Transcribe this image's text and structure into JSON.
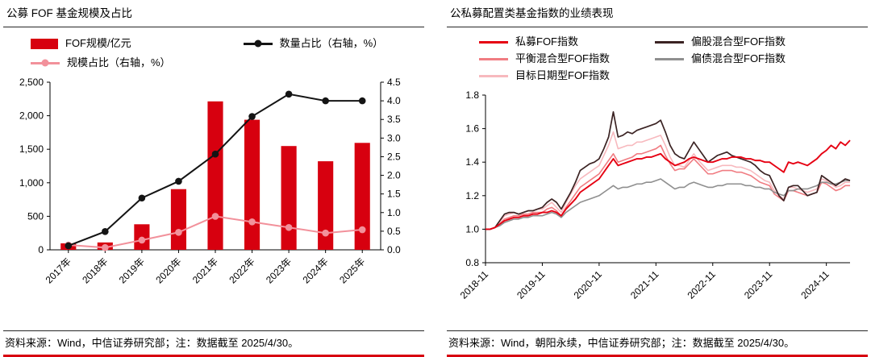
{
  "page": {
    "accent_red": "#D7000F",
    "axis_color": "#000000"
  },
  "left_panel": {
    "title": "公募 FOF 基金规模及占比",
    "source_note": "资料来源：Wind，中信证券研究部；注：数据截至 2025/4/30。"
  },
  "right_panel": {
    "title": "公私募配置类基金指数的业绩表现",
    "source_note": "资料来源：Wind，朝阳永续，中信证券研究部；注：数据截至 2025/4/30。"
  },
  "chart_data": [
    {
      "id": "fof-scale",
      "type": "bar",
      "title": "公募 FOF 基金规模及占比",
      "categories": [
        "2017年",
        "2018年",
        "2019年",
        "2020年",
        "2021年",
        "2022年",
        "2023年",
        "2024年",
        "2025年"
      ],
      "series": [
        {
          "name": "FOF规模/亿元",
          "kind": "bar",
          "axis": "left",
          "color": "#D7000F",
          "swatch": "bar",
          "values": [
            97,
            110,
            381,
            905,
            2214,
            1940,
            1548,
            1321,
            1595
          ]
        },
        {
          "name": "数量占比（右轴，%）",
          "kind": "line",
          "axis": "right",
          "color": "#141414",
          "swatch": "line-dot",
          "values": [
            0.11,
            0.49,
            1.39,
            1.84,
            2.57,
            3.58,
            4.18,
            4.0,
            4.0
          ]
        },
        {
          "name": "规模占比（右轴，%）",
          "kind": "line",
          "axis": "right",
          "color": "#F2919B",
          "swatch": "line-dot",
          "values": [
            0.13,
            0.06,
            0.26,
            0.47,
            0.9,
            0.75,
            0.6,
            0.45,
            0.54
          ]
        }
      ],
      "left_axis": {
        "min": 0,
        "max": 2500,
        "step": 500,
        "tick_labels": [
          "0",
          "500",
          "1,000",
          "1,500",
          "2,000",
          "2,500"
        ]
      },
      "right_axis": {
        "min": 0,
        "max": 4.5,
        "step": 0.5,
        "tick_labels": [
          "0.0",
          "0.5",
          "1.0",
          "1.5",
          "2.0",
          "2.5",
          "3.0",
          "3.5",
          "4.0",
          "4.5"
        ]
      },
      "grid": false,
      "legend_position": "top"
    },
    {
      "id": "index-performance",
      "type": "line",
      "title": "公私募配置类基金指数的业绩表现",
      "x_tick_labels": [
        "2018-11",
        "2019-11",
        "2020-11",
        "2021-11",
        "2022-11",
        "2023-11",
        "2024-11"
      ],
      "x_tick_indices": [
        0,
        12,
        24,
        36,
        48,
        60,
        72
      ],
      "n_points": 78,
      "y_axis": {
        "min": 0.8,
        "max": 1.8,
        "step": 0.2,
        "tick_labels": [
          "0.8",
          "1.0",
          "1.2",
          "1.4",
          "1.6",
          "1.8"
        ]
      },
      "grid": false,
      "legend_position": "top",
      "draw_order": [
        4,
        2,
        3,
        1,
        0
      ],
      "series": [
        {
          "name": "私募FOF指数",
          "color": "#E60012",
          "width": 1.9,
          "values": [
            1.0,
            1.0,
            1.01,
            1.03,
            1.05,
            1.06,
            1.07,
            1.07,
            1.08,
            1.08,
            1.09,
            1.09,
            1.1,
            1.1,
            1.11,
            1.1,
            1.08,
            1.12,
            1.15,
            1.18,
            1.22,
            1.24,
            1.26,
            1.28,
            1.3,
            1.34,
            1.38,
            1.42,
            1.38,
            1.39,
            1.4,
            1.41,
            1.42,
            1.42,
            1.43,
            1.43,
            1.44,
            1.45,
            1.42,
            1.4,
            1.38,
            1.39,
            1.4,
            1.42,
            1.43,
            1.42,
            1.41,
            1.4,
            1.4,
            1.41,
            1.42,
            1.42,
            1.43,
            1.43,
            1.43,
            1.42,
            1.42,
            1.41,
            1.41,
            1.4,
            1.4,
            1.38,
            1.36,
            1.34,
            1.4,
            1.39,
            1.4,
            1.39,
            1.38,
            1.4,
            1.42,
            1.45,
            1.47,
            1.5,
            1.48,
            1.52,
            1.5,
            1.53
          ]
        },
        {
          "name": "偏股混合型FOF指数",
          "color": "#3B2323",
          "width": 1.7,
          "values": [
            1.0,
            1.0,
            1.01,
            1.05,
            1.09,
            1.1,
            1.1,
            1.09,
            1.1,
            1.11,
            1.11,
            1.12,
            1.13,
            1.16,
            1.18,
            1.16,
            1.12,
            1.17,
            1.22,
            1.28,
            1.35,
            1.37,
            1.39,
            1.4,
            1.42,
            1.48,
            1.55,
            1.7,
            1.55,
            1.56,
            1.58,
            1.57,
            1.59,
            1.6,
            1.61,
            1.62,
            1.63,
            1.65,
            1.58,
            1.5,
            1.45,
            1.43,
            1.42,
            1.47,
            1.52,
            1.48,
            1.44,
            1.4,
            1.42,
            1.44,
            1.45,
            1.46,
            1.44,
            1.43,
            1.42,
            1.41,
            1.4,
            1.38,
            1.35,
            1.33,
            1.32,
            1.26,
            1.2,
            1.17,
            1.25,
            1.26,
            1.26,
            1.23,
            1.2,
            1.21,
            1.22,
            1.32,
            1.3,
            1.28,
            1.26,
            1.28,
            1.3,
            1.29
          ]
        },
        {
          "name": "平衡混合型FOF指数",
          "color": "#F07C82",
          "width": 1.6,
          "values": [
            1.0,
            1.0,
            1.01,
            1.03,
            1.06,
            1.07,
            1.08,
            1.08,
            1.09,
            1.09,
            1.1,
            1.1,
            1.1,
            1.12,
            1.13,
            1.11,
            1.08,
            1.13,
            1.17,
            1.21,
            1.25,
            1.27,
            1.29,
            1.31,
            1.33,
            1.37,
            1.41,
            1.45,
            1.4,
            1.41,
            1.42,
            1.43,
            1.45,
            1.45,
            1.46,
            1.47,
            1.48,
            1.5,
            1.44,
            1.39,
            1.35,
            1.36,
            1.36,
            1.39,
            1.42,
            1.39,
            1.36,
            1.33,
            1.33,
            1.34,
            1.35,
            1.35,
            1.35,
            1.34,
            1.34,
            1.33,
            1.32,
            1.3,
            1.28,
            1.27,
            1.26,
            1.21,
            1.19,
            1.17,
            1.23,
            1.23,
            1.22,
            1.21,
            1.2,
            1.21,
            1.22,
            1.28,
            1.27,
            1.25,
            1.23,
            1.24,
            1.26,
            1.26
          ]
        },
        {
          "name": "偏债混合型FOF指数",
          "color": "#8F8F8F",
          "width": 1.6,
          "values": [
            1.0,
            1.0,
            1.01,
            1.02,
            1.04,
            1.05,
            1.06,
            1.06,
            1.07,
            1.07,
            1.08,
            1.08,
            1.08,
            1.09,
            1.1,
            1.09,
            1.07,
            1.1,
            1.12,
            1.14,
            1.16,
            1.17,
            1.18,
            1.19,
            1.2,
            1.22,
            1.24,
            1.26,
            1.24,
            1.25,
            1.25,
            1.26,
            1.27,
            1.27,
            1.28,
            1.28,
            1.29,
            1.3,
            1.28,
            1.26,
            1.24,
            1.25,
            1.25,
            1.27,
            1.28,
            1.27,
            1.26,
            1.25,
            1.25,
            1.26,
            1.26,
            1.27,
            1.27,
            1.27,
            1.27,
            1.26,
            1.26,
            1.25,
            1.25,
            1.24,
            1.24,
            1.22,
            1.21,
            1.2,
            1.23,
            1.23,
            1.24,
            1.24,
            1.24,
            1.25,
            1.26,
            1.28,
            1.28,
            1.27,
            1.27,
            1.28,
            1.29,
            1.29
          ]
        },
        {
          "name": "目标日期型FOF指数",
          "color": "#F7B9BE",
          "width": 1.6,
          "values": [
            1.0,
            1.0,
            1.01,
            1.04,
            1.08,
            1.09,
            1.1,
            1.09,
            1.1,
            1.11,
            1.11,
            1.12,
            1.12,
            1.14,
            1.16,
            1.13,
            1.1,
            1.16,
            1.21,
            1.26,
            1.3,
            1.32,
            1.34,
            1.36,
            1.38,
            1.44,
            1.5,
            1.58,
            1.48,
            1.49,
            1.5,
            1.5,
            1.52,
            1.52,
            1.53,
            1.54,
            1.55,
            1.56,
            1.5,
            1.43,
            1.38,
            1.38,
            1.37,
            1.41,
            1.45,
            1.41,
            1.38,
            1.35,
            1.36,
            1.37,
            1.38,
            1.38,
            1.38,
            1.37,
            1.37,
            1.36,
            1.35,
            1.33,
            1.31,
            1.29,
            1.28,
            1.23,
            1.2,
            1.18,
            1.25,
            1.25,
            1.24,
            1.23,
            1.22,
            1.23,
            1.24,
            1.3,
            1.29,
            1.27,
            1.25,
            1.26,
            1.28,
            1.28
          ]
        }
      ]
    }
  ]
}
